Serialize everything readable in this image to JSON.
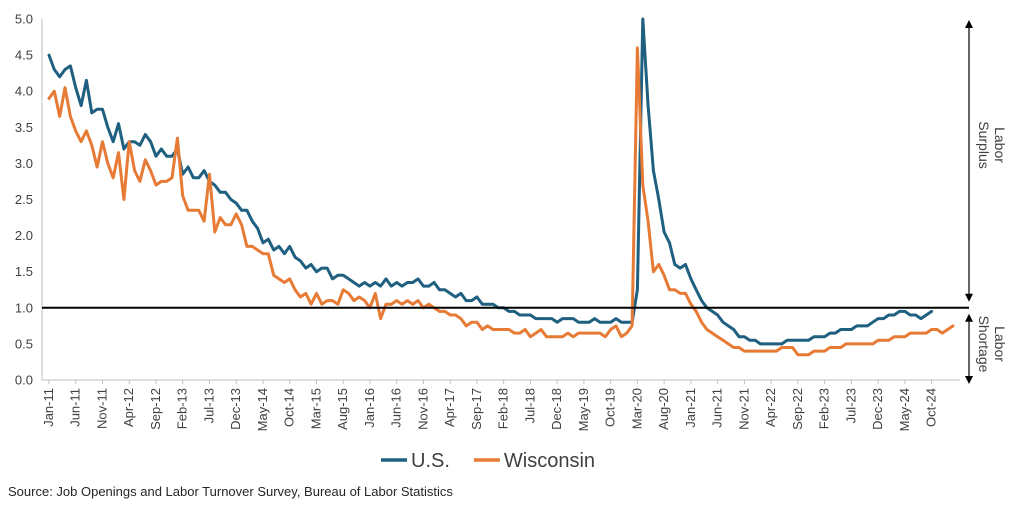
{
  "chart_data": {
    "type": "line",
    "y_ticks": [
      "0.0",
      "0.5",
      "1.0",
      "1.5",
      "2.0",
      "2.5",
      "3.0",
      "3.5",
      "4.0",
      "4.5",
      "5.0"
    ],
    "ylim": [
      0,
      5
    ],
    "x_tick_labels": [
      "Jan-11",
      "Jun-11",
      "Nov-11",
      "Apr-12",
      "Sep-12",
      "Feb-13",
      "Jul-13",
      "Dec-13",
      "May-14",
      "Oct-14",
      "Mar-15",
      "Aug-15",
      "Jan-16",
      "Jun-16",
      "Nov-16",
      "Apr-17",
      "Sep-17",
      "Feb-18",
      "Jul-18",
      "Dec-18",
      "May-19",
      "Oct-19",
      "Mar-20",
      "Aug-20",
      "Jan-21",
      "Jun-21",
      "Nov-21",
      "Apr-22",
      "Sep-22",
      "Feb-23",
      "Jul-23",
      "Dec-23",
      "May-24",
      "Oct-24"
    ],
    "x_start": "Jan-11",
    "reference_line": 1.0,
    "grid": false,
    "legend_position": "bottom",
    "side_labels": {
      "top": "Labor Surplus",
      "bottom": "Labor Shortage"
    },
    "series": [
      {
        "name": "U.S.",
        "color": "#1f5f7f",
        "values": [
          4.5,
          4.3,
          4.2,
          4.3,
          4.35,
          4.05,
          3.8,
          4.15,
          3.7,
          3.75,
          3.75,
          3.5,
          3.3,
          3.55,
          3.2,
          3.3,
          3.3,
          3.25,
          3.4,
          3.3,
          3.1,
          3.2,
          3.1,
          3.1,
          3.2,
          2.85,
          2.95,
          2.8,
          2.8,
          2.9,
          2.75,
          2.7,
          2.6,
          2.6,
          2.5,
          2.45,
          2.35,
          2.35,
          2.2,
          2.1,
          1.9,
          1.95,
          1.8,
          1.85,
          1.75,
          1.85,
          1.7,
          1.65,
          1.55,
          1.6,
          1.5,
          1.55,
          1.55,
          1.4,
          1.45,
          1.45,
          1.4,
          1.35,
          1.3,
          1.35,
          1.3,
          1.35,
          1.3,
          1.4,
          1.3,
          1.35,
          1.3,
          1.35,
          1.35,
          1.4,
          1.3,
          1.3,
          1.35,
          1.25,
          1.25,
          1.2,
          1.15,
          1.2,
          1.1,
          1.1,
          1.15,
          1.05,
          1.05,
          1.05,
          1.0,
          1.0,
          0.95,
          0.95,
          0.9,
          0.9,
          0.9,
          0.85,
          0.85,
          0.85,
          0.85,
          0.8,
          0.85,
          0.85,
          0.85,
          0.8,
          0.8,
          0.8,
          0.85,
          0.8,
          0.8,
          0.8,
          0.85,
          0.8,
          0.8,
          0.8,
          1.25,
          5.0,
          3.8,
          2.9,
          2.5,
          2.05,
          1.9,
          1.6,
          1.55,
          1.6,
          1.4,
          1.25,
          1.1,
          1.0,
          0.95,
          0.9,
          0.8,
          0.75,
          0.7,
          0.6,
          0.6,
          0.55,
          0.55,
          0.5,
          0.5,
          0.5,
          0.5,
          0.5,
          0.55,
          0.55,
          0.55,
          0.55,
          0.55,
          0.6,
          0.6,
          0.6,
          0.65,
          0.65,
          0.7,
          0.7,
          0.7,
          0.75,
          0.75,
          0.75,
          0.8,
          0.85,
          0.85,
          0.9,
          0.9,
          0.95,
          0.95,
          0.9,
          0.9,
          0.85,
          0.9,
          0.95
        ]
      },
      {
        "name": "Wisconsin",
        "color": "#e77a35",
        "values": [
          3.9,
          4.0,
          3.65,
          4.05,
          3.65,
          3.45,
          3.3,
          3.45,
          3.25,
          2.95,
          3.3,
          3.0,
          2.8,
          3.15,
          2.5,
          3.3,
          2.9,
          2.75,
          3.05,
          2.9,
          2.7,
          2.75,
          2.75,
          2.8,
          3.35,
          2.55,
          2.35,
          2.35,
          2.35,
          2.2,
          2.85,
          2.05,
          2.25,
          2.15,
          2.15,
          2.3,
          2.15,
          1.85,
          1.85,
          1.8,
          1.75,
          1.75,
          1.45,
          1.4,
          1.35,
          1.4,
          1.25,
          1.15,
          1.2,
          1.05,
          1.2,
          1.05,
          1.1,
          1.1,
          1.05,
          1.25,
          1.2,
          1.1,
          1.15,
          1.1,
          1.0,
          1.2,
          0.85,
          1.05,
          1.05,
          1.1,
          1.05,
          1.1,
          1.05,
          1.1,
          1.0,
          1.05,
          1.0,
          0.95,
          0.95,
          0.9,
          0.9,
          0.85,
          0.75,
          0.8,
          0.8,
          0.7,
          0.75,
          0.7,
          0.7,
          0.7,
          0.7,
          0.65,
          0.65,
          0.7,
          0.6,
          0.65,
          0.7,
          0.6,
          0.6,
          0.6,
          0.6,
          0.65,
          0.6,
          0.65,
          0.65,
          0.65,
          0.65,
          0.65,
          0.6,
          0.7,
          0.75,
          0.6,
          0.65,
          0.75,
          4.6,
          2.7,
          2.2,
          1.5,
          1.6,
          1.45,
          1.25,
          1.25,
          1.2,
          1.2,
          1.05,
          0.95,
          0.8,
          0.7,
          0.65,
          0.6,
          0.55,
          0.5,
          0.45,
          0.45,
          0.4,
          0.4,
          0.4,
          0.4,
          0.4,
          0.4,
          0.4,
          0.45,
          0.45,
          0.45,
          0.35,
          0.35,
          0.35,
          0.4,
          0.4,
          0.4,
          0.45,
          0.45,
          0.45,
          0.5,
          0.5,
          0.5,
          0.5,
          0.5,
          0.5,
          0.55,
          0.55,
          0.55,
          0.6,
          0.6,
          0.6,
          0.65,
          0.65,
          0.65,
          0.65,
          0.7,
          0.7,
          0.65,
          0.7,
          0.75
        ]
      }
    ]
  },
  "footer": {
    "source": "Source: Job Openings and Labor Turnover Survey, Bureau of Labor Statistics"
  }
}
